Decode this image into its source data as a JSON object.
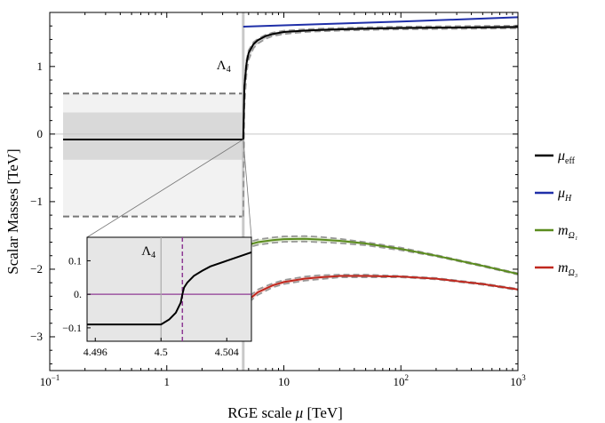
{
  "chart_data": {
    "type": "line",
    "xscale": "log",
    "xlim": [
      0.1,
      1000
    ],
    "ylim": [
      -3.5,
      1.8
    ],
    "xlabel": "RGE scale μ [TeV]",
    "ylabel": "Scalar Masses  [TeV]",
    "x_ticks": [
      {
        "value": 0.1,
        "base": "10",
        "exp": "−1"
      },
      {
        "value": 1,
        "base": "1",
        "exp": ""
      },
      {
        "value": 10,
        "base": "10",
        "exp": ""
      },
      {
        "value": 100,
        "base": "10",
        "exp": "2"
      },
      {
        "value": 1000,
        "base": "10",
        "exp": "3"
      }
    ],
    "y_ticks": [
      {
        "value": 1,
        "label": "1"
      },
      {
        "value": 0,
        "label": "0"
      },
      {
        "value": -1,
        "label": "−1"
      },
      {
        "value": -2,
        "label": "−2"
      },
      {
        "value": -3,
        "label": "−3"
      }
    ],
    "threshold": {
      "x": 4.5,
      "label": "Λ",
      "sub": "4"
    },
    "low_scale": {
      "x_range": [
        0.13,
        4.5
      ],
      "central": -0.08,
      "inner_band": [
        -0.38,
        0.32
      ],
      "outer_band": [
        -1.22,
        0.6
      ]
    },
    "series": [
      {
        "name": "mu_eff",
        "label": "μ",
        "sub": "eff",
        "color": "#000000",
        "x": [
          4.5,
          4.6,
          4.8,
          5,
          5.5,
          6,
          7,
          8,
          10,
          15,
          20,
          30,
          50,
          100,
          200,
          500,
          1000
        ],
        "y": [
          -0.08,
          0.7,
          1.05,
          1.2,
          1.33,
          1.39,
          1.45,
          1.48,
          1.51,
          1.53,
          1.54,
          1.55,
          1.56,
          1.57,
          1.575,
          1.58,
          1.585
        ],
        "band_upper": [
          -0.08,
          0.78,
          1.1,
          1.24,
          1.36,
          1.41,
          1.47,
          1.5,
          1.53,
          1.55,
          1.56,
          1.57,
          1.58,
          1.59,
          1.595,
          1.6,
          1.605
        ],
        "band_lower": [
          -1.22,
          0.4,
          0.9,
          1.1,
          1.27,
          1.34,
          1.41,
          1.45,
          1.48,
          1.51,
          1.52,
          1.53,
          1.54,
          1.55,
          1.555,
          1.56,
          1.565
        ]
      },
      {
        "name": "mu_H",
        "label": "μ",
        "sub": "H",
        "color": "#1f2fa8",
        "x": [
          4.5,
          10,
          30,
          100,
          300,
          1000
        ],
        "y": [
          1.59,
          1.61,
          1.635,
          1.665,
          1.695,
          1.73
        ]
      },
      {
        "name": "m_Omega1",
        "label": "m",
        "sub": "Ω₁",
        "color": "#5b8c1e",
        "x": [
          4.5,
          6,
          8,
          10,
          15,
          20,
          30,
          50,
          100,
          200,
          500,
          1000
        ],
        "y": [
          -1.66,
          -1.6,
          -1.57,
          -1.555,
          -1.55,
          -1.56,
          -1.58,
          -1.62,
          -1.7,
          -1.8,
          -1.95,
          -2.07
        ],
        "band_upper": [
          -1.62,
          -1.56,
          -1.53,
          -1.515,
          -1.51,
          -1.52,
          -1.55,
          -1.6,
          -1.68,
          -1.79,
          -1.94,
          -2.06
        ],
        "band_lower": [
          -1.7,
          -1.64,
          -1.61,
          -1.595,
          -1.59,
          -1.6,
          -1.615,
          -1.645,
          -1.72,
          -1.81,
          -1.96,
          -2.08
        ]
      },
      {
        "name": "m_Omega3",
        "label": "m",
        "sub": "Ω₃",
        "color": "#c0281e",
        "x": [
          4.5,
          5,
          6,
          8,
          10,
          15,
          20,
          30,
          50,
          100,
          200,
          500,
          1000
        ],
        "y": [
          -2.55,
          -2.45,
          -2.34,
          -2.24,
          -2.19,
          -2.14,
          -2.12,
          -2.1,
          -2.1,
          -2.11,
          -2.14,
          -2.22,
          -2.3
        ],
        "band_upper": [
          -2.5,
          -2.41,
          -2.3,
          -2.21,
          -2.16,
          -2.11,
          -2.09,
          -2.08,
          -2.08,
          -2.1,
          -2.13,
          -2.21,
          -2.29
        ],
        "band_lower": [
          -2.6,
          -2.49,
          -2.38,
          -2.27,
          -2.22,
          -2.17,
          -2.15,
          -2.12,
          -2.12,
          -2.12,
          -2.15,
          -2.23,
          -2.31
        ]
      }
    ],
    "inset": {
      "xlim": [
        4.4955,
        4.5055
      ],
      "ylim": [
        -0.14,
        0.17
      ],
      "x_ticks": [
        {
          "value": 4.496,
          "label": "4.496"
        },
        {
          "value": 4.5,
          "label": "4.5"
        },
        {
          "value": 4.504,
          "label": "4.504"
        }
      ],
      "y_ticks": [
        {
          "value": 0.1,
          "label": "0.1"
        },
        {
          "value": 0,
          "label": "0."
        },
        {
          "value": -0.1,
          "label": "−0.1"
        }
      ],
      "threshold_x": 4.5,
      "dashed_x": 4.5013,
      "zero_line_color": "#8e3a94",
      "curve": {
        "x": [
          4.4955,
          4.5,
          4.5005,
          4.5009,
          4.5012,
          4.5013,
          4.5014,
          4.5016,
          4.502,
          4.5025,
          4.503,
          4.504,
          4.5055
        ],
        "y": [
          -0.09,
          -0.09,
          -0.075,
          -0.055,
          -0.025,
          0.0,
          0.02,
          0.035,
          0.055,
          0.07,
          0.083,
          0.1,
          0.125
        ]
      }
    }
  }
}
